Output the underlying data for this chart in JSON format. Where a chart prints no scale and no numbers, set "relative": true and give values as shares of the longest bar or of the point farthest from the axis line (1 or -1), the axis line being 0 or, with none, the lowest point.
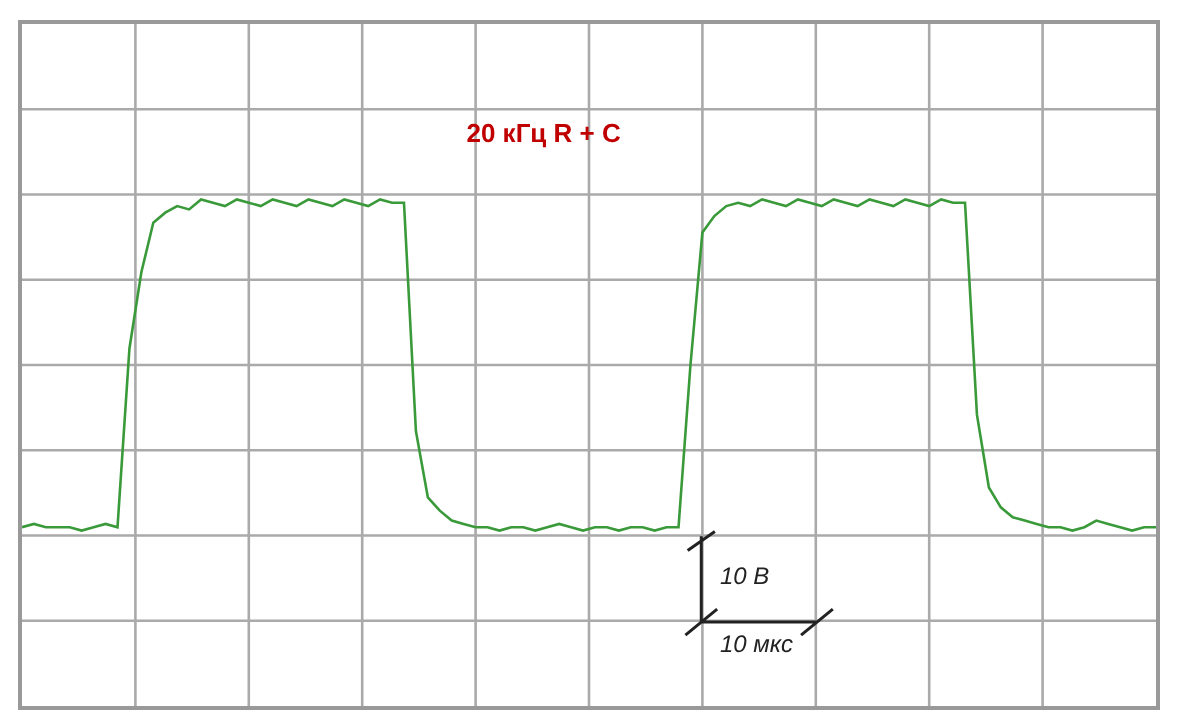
{
  "chart_data": {
    "type": "line",
    "title": "20 кГц R + C",
    "relative": true,
    "grid": true,
    "marker": "none",
    "line_style": "solid",
    "categories": [
      null,
      null,
      null,
      null,
      null,
      null,
      null,
      null,
      null,
      null,
      null,
      null,
      null,
      null,
      null,
      null,
      null,
      null,
      null,
      null,
      null,
      null,
      null,
      null,
      null,
      null,
      null,
      null,
      null,
      null,
      null,
      null,
      null,
      null,
      null,
      null,
      null,
      null,
      null,
      null,
      null,
      null,
      null,
      null,
      null,
      null,
      null,
      null,
      null,
      null,
      null,
      null,
      null,
      null,
      null,
      null,
      null,
      null,
      null,
      null,
      null,
      null,
      null,
      null,
      null,
      null,
      null,
      null,
      null,
      null,
      null,
      null,
      null,
      null,
      null,
      null,
      null,
      null,
      null,
      null,
      null,
      null,
      null,
      null,
      null,
      null,
      null,
      null,
      null,
      null,
      null,
      null,
      null,
      null,
      null,
      null
    ],
    "series": [
      {
        "color": "#3a9a3a",
        "values": [
          0.01,
          0.02,
          0.01,
          0.01,
          0.01,
          0.0,
          0.01,
          0.02,
          0.01,
          0.55,
          0.78,
          0.93,
          0.96,
          0.98,
          0.97,
          1.0,
          0.99,
          0.98,
          1.0,
          0.99,
          0.98,
          1.0,
          0.99,
          0.98,
          1.0,
          0.99,
          0.98,
          1.0,
          0.99,
          0.98,
          1.0,
          0.99,
          0.99,
          0.3,
          0.1,
          0.06,
          0.03,
          0.02,
          0.01,
          0.01,
          0.0,
          0.01,
          0.01,
          0.0,
          0.01,
          0.02,
          0.01,
          0.0,
          0.01,
          0.01,
          0.0,
          0.01,
          0.01,
          0.0,
          0.01,
          0.01,
          0.5,
          0.9,
          0.95,
          0.98,
          0.99,
          0.98,
          1.0,
          0.99,
          0.98,
          1.0,
          0.99,
          0.98,
          1.0,
          0.99,
          0.98,
          1.0,
          0.99,
          0.98,
          1.0,
          0.99,
          0.98,
          1.0,
          0.99,
          0.99,
          0.35,
          0.13,
          0.07,
          0.04,
          0.03,
          0.02,
          0.01,
          0.01,
          0.0,
          0.01,
          0.03,
          0.02,
          0.01,
          0.0,
          0.01,
          0.01
        ]
      }
    ],
    "annotations": [
      "10 В",
      "10 мкс"
    ]
  }
}
